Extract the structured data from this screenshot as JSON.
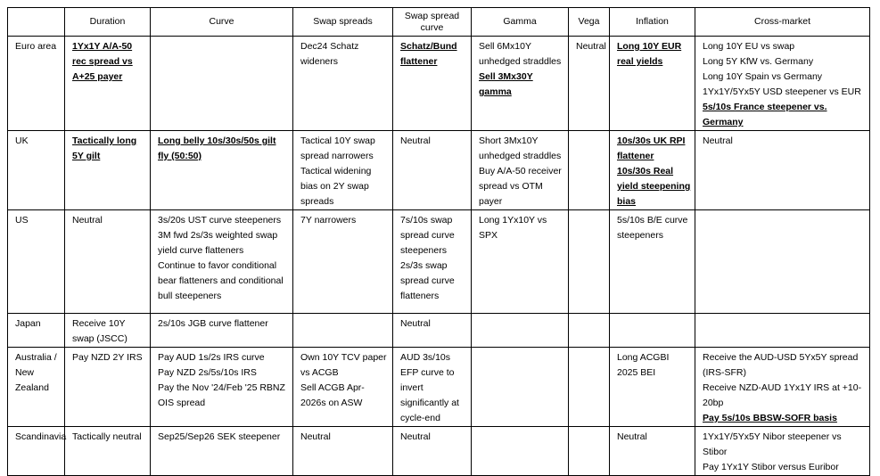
{
  "table": {
    "columns": [
      "Duration",
      "Curve",
      "Swap spreads",
      "Swap spread curve",
      "Gamma",
      "Vega",
      "Inflation",
      "Cross-market"
    ],
    "rows": [
      {
        "label": "Euro area",
        "cells": [
          [
            {
              "text": "1Yx1Y A/A-50 rec spread vs A+25 payer",
              "bold": true
            }
          ],
          [],
          [
            "Dec24 Schatz wideners"
          ],
          [
            {
              "text": "Schatz/Bund flattener",
              "bold": true
            }
          ],
          [
            "Sell 6Mx10Y unhedged straddles",
            {
              "text": "Sell 3Mx30Y gamma",
              "bold": true
            }
          ],
          [
            "Neutral"
          ],
          [
            {
              "text": "Long 10Y EUR real yields",
              "bold": true
            }
          ],
          [
            "Long 10Y EU vs swap",
            "Long 5Y KfW vs. Germany",
            "Long 10Y Spain vs Germany",
            "1Yx1Y/5Yx5Y USD steepener vs EUR",
            {
              "text": "5s/10s France steepener vs. Germany",
              "bold": true
            }
          ]
        ]
      },
      {
        "label": "UK",
        "cells": [
          [
            {
              "text": "Tactically long 5Y gilt",
              "bold": true
            }
          ],
          [
            {
              "text": "Long belly 10s/30s/50s gilt fly (50:50)",
              "bold": true
            }
          ],
          [
            "Tactical 10Y swap spread narrowers",
            "Tactical widening bias on 2Y swap spreads"
          ],
          [
            "Neutral"
          ],
          [
            "Short 3Mx10Y unhedged straddles",
            "Buy A/A-50 receiver spread vs OTM payer"
          ],
          [],
          [
            {
              "text": "10s/30s UK RPI flattener",
              "bold": true
            },
            {
              "text": "10s/30s Real yield steepening bias",
              "bold": true
            }
          ],
          [
            "Neutral"
          ]
        ]
      },
      {
        "label": "US",
        "cells": [
          [
            "Neutral"
          ],
          [
            "3s/20s UST curve steepeners",
            "3M fwd 2s/3s weighted swap yield curve flatteners",
            "Continue to favor conditional bear flatteners and conditional bull steepeners"
          ],
          [
            "7Y narrowers"
          ],
          [
            "7s/10s swap spread curve steepeners",
            "2s/3s swap spread curve flatteners"
          ],
          [
            "Long 1Yx10Y vs SPX"
          ],
          [],
          [
            "5s/10s B/E curve steepeners"
          ],
          []
        ]
      },
      {
        "label": "Japan",
        "cells": [
          [
            "Receive 10Y swap (JSCC)"
          ],
          [
            "2s/10s JGB curve flattener"
          ],
          [],
          [
            "Neutral"
          ],
          [],
          [],
          [],
          []
        ]
      },
      {
        "label": "Australia / New Zealand",
        "cells": [
          [
            "Pay NZD 2Y IRS"
          ],
          [
            "Pay AUD 1s/2s IRS curve",
            "Pay NZD 2s/5s/10s IRS",
            "Pay the Nov '24/Feb '25 RBNZ OIS spread"
          ],
          [
            "Own 10Y TCV paper vs ACGB",
            "Sell ACGB Apr-2026s on ASW"
          ],
          [
            "AUD 3s/10s EFP curve to invert significantly at cycle-end"
          ],
          [],
          [],
          [
            "Long ACGBI 2025 BEI"
          ],
          [
            "Receive the AUD-USD 5Yx5Y spread (IRS-SFR)",
            "Receive NZD-AUD 1Yx1Y IRS at +10-20bp",
            {
              "text": "Pay 5s/10s BBSW-SOFR basis",
              "bold": true
            }
          ]
        ]
      },
      {
        "label": "Scandinavia",
        "cells": [
          [
            "Tactically neutral"
          ],
          [
            "Sep25/Sep26 SEK steepener"
          ],
          [
            "Neutral"
          ],
          [
            "Neutral"
          ],
          [],
          [],
          [
            "Neutral"
          ],
          [
            "1Yx1Y/5Yx5Y Nibor steepener vs Stibor",
            "Pay 1Yx1Y Stibor versus Euribor"
          ]
        ]
      }
    ]
  }
}
